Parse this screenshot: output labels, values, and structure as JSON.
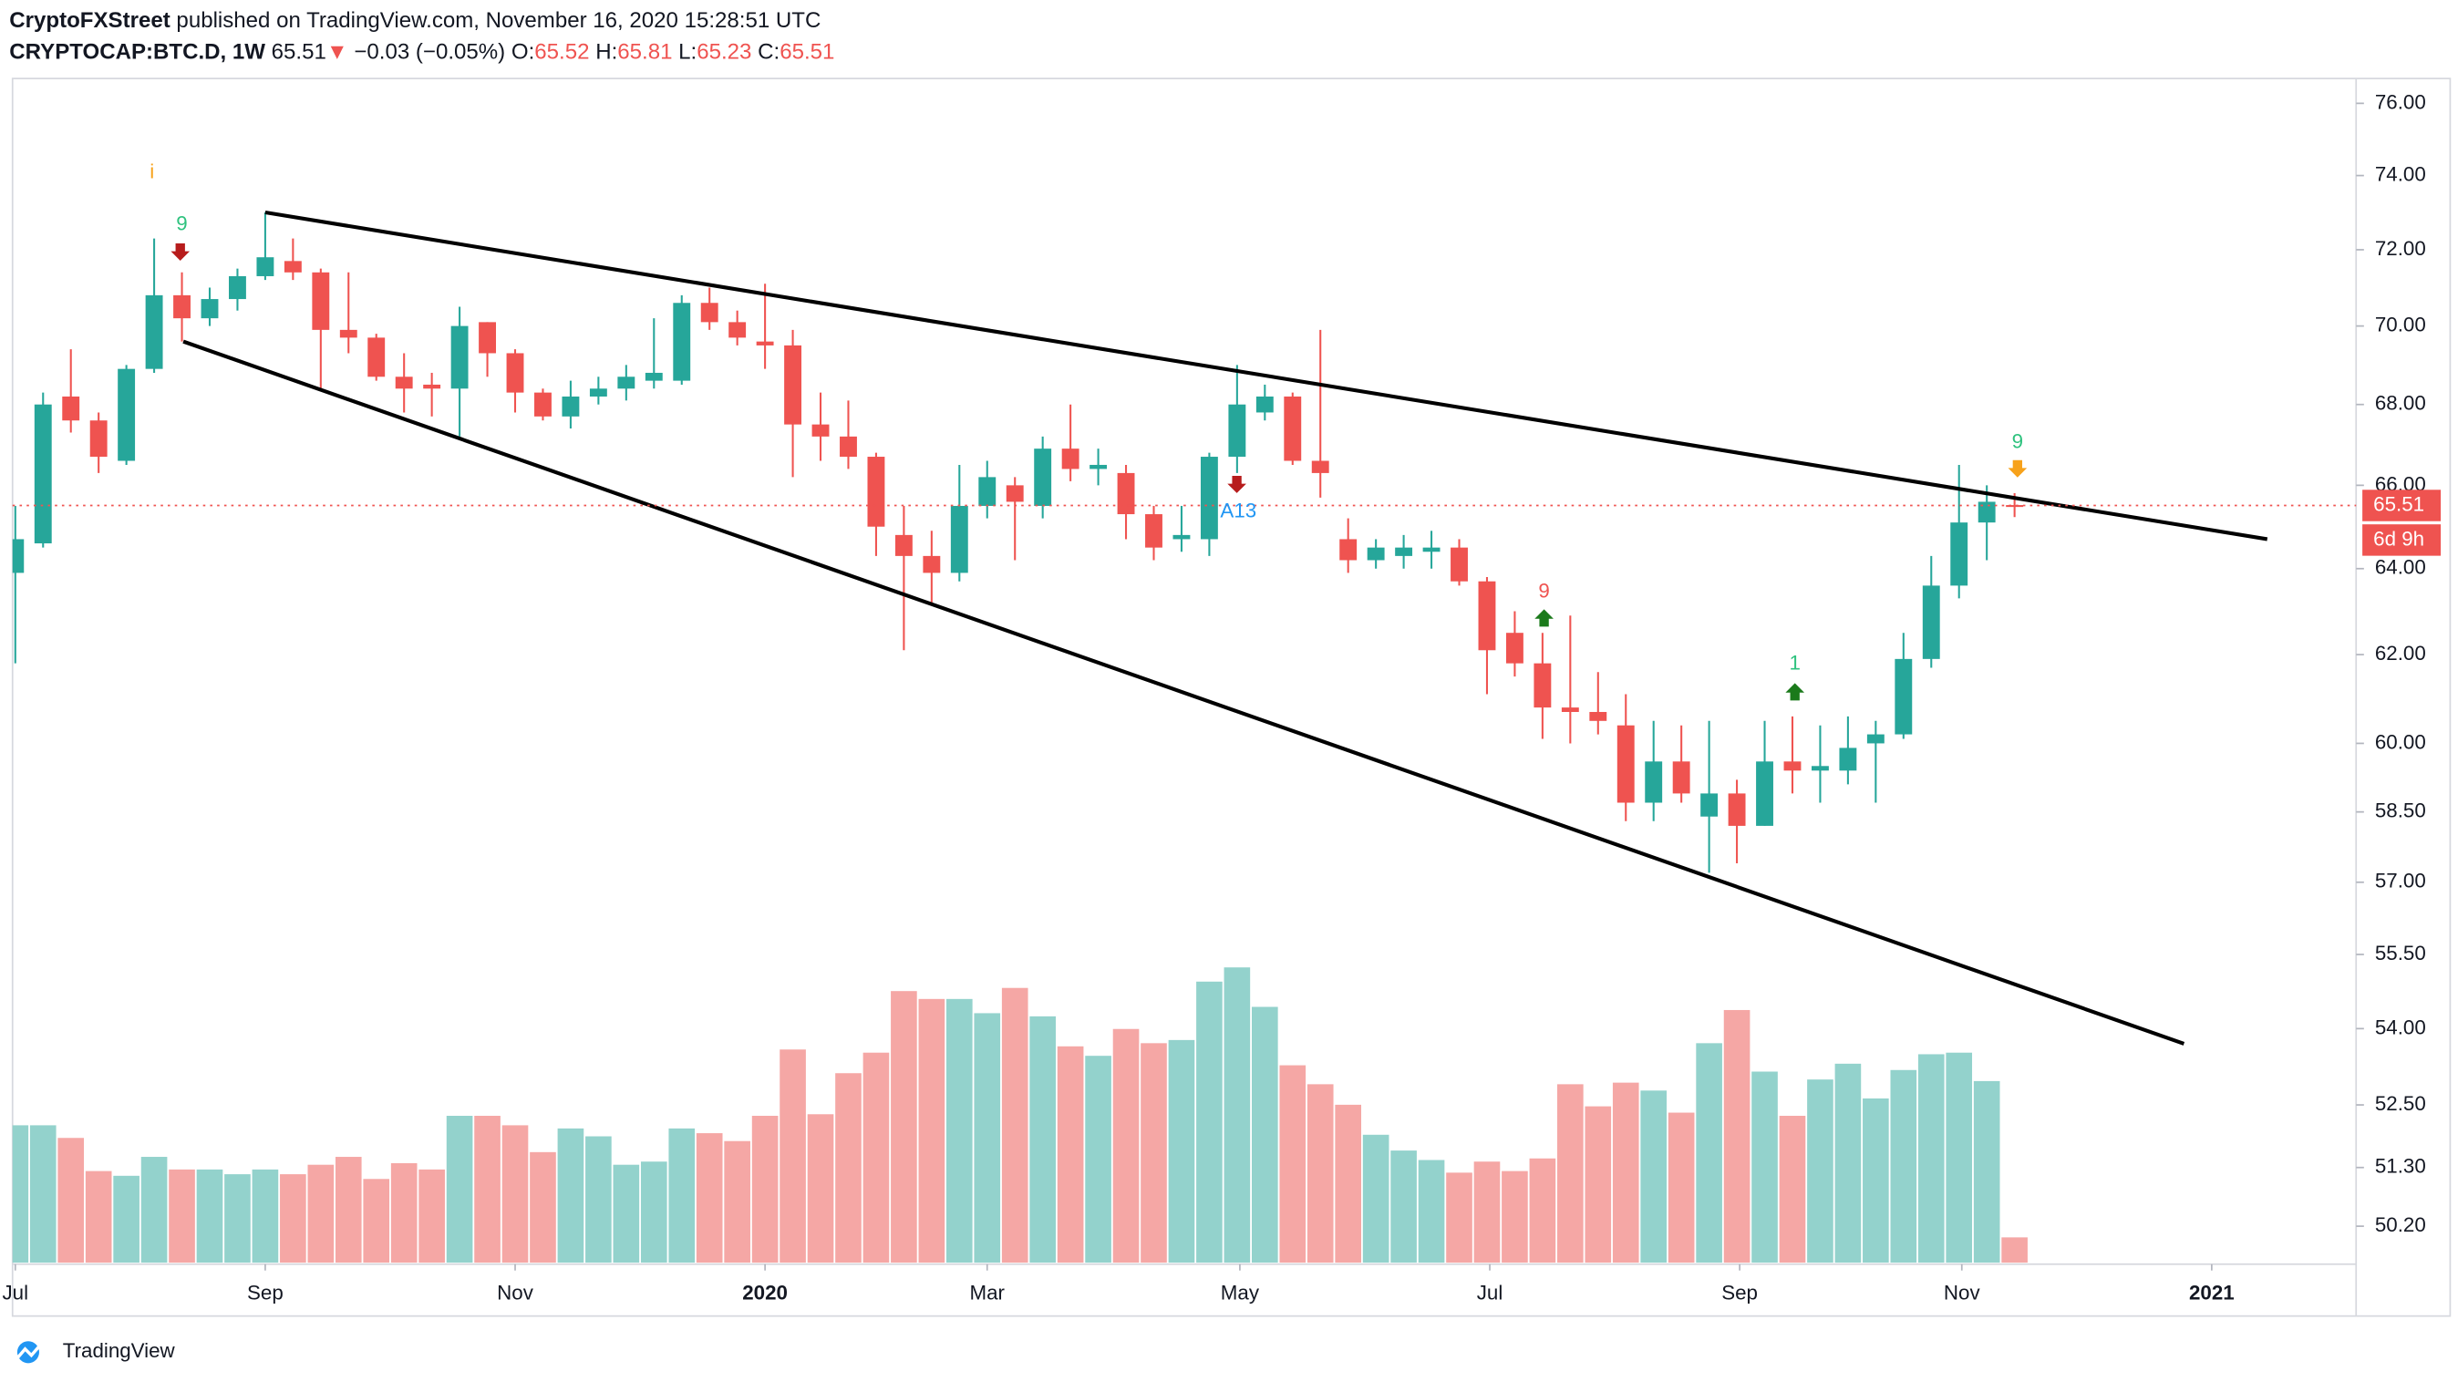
{
  "header": {
    "author": "CryptoFXStreet",
    "published": "published on TradingView.com, November 16, 2020 15:28:51 UTC",
    "symbol": "CRYPTOCAP:BTC.D, 1W",
    "last": 65.51,
    "arrow": "▼",
    "change": "−0.03 (−0.05%)",
    "o_label": "O:",
    "o": 65.52,
    "h_label": "H:",
    "h": 65.81,
    "l_label": "L:",
    "l": 65.23,
    "c_label": "C:",
    "c": 65.51
  },
  "chart_data": {
    "type": "candlestick",
    "log_scale": true,
    "up_color": "#26a69a",
    "down_color": "#ef5350",
    "volume_up_color": "#93d2cc",
    "volume_down_color": "#f5a7a5",
    "open": [
      63.9,
      64.6,
      68.2,
      67.6,
      66.6,
      68.9,
      70.8,
      70.2,
      70.7,
      71.3,
      71.7,
      71.4,
      69.9,
      69.7,
      68.7,
      68.5,
      68.4,
      70.1,
      69.3,
      68.3,
      67.7,
      68.2,
      68.4,
      68.6,
      68.6,
      70.6,
      70.1,
      69.6,
      69.5,
      67.5,
      67.2,
      66.7,
      64.8,
      64.3,
      63.9,
      65.5,
      66.0,
      65.5,
      66.9,
      66.4,
      66.3,
      65.3,
      64.7,
      64.7,
      66.7,
      67.8,
      68.2,
      66.6,
      64.7,
      64.2,
      64.3,
      64.4,
      64.5,
      63.7,
      62.5,
      61.8,
      60.8,
      60.7,
      60.4,
      58.7,
      59.6,
      58.4,
      58.9,
      58.2,
      59.6,
      59.4,
      59.4,
      60.0,
      60.2,
      61.9,
      63.6,
      65.1,
      65.52
    ],
    "high": [
      65.5,
      68.3,
      69.4,
      67.8,
      69.0,
      72.3,
      71.4,
      71.0,
      71.5,
      73.0,
      72.3,
      71.5,
      71.4,
      69.8,
      69.3,
      68.8,
      70.5,
      70.1,
      69.4,
      68.4,
      68.6,
      68.7,
      69.0,
      70.2,
      70.8,
      71.0,
      70.4,
      71.1,
      69.9,
      68.3,
      68.1,
      66.8,
      65.5,
      64.9,
      66.5,
      66.6,
      66.2,
      67.2,
      68.0,
      66.9,
      66.5,
      65.5,
      65.5,
      66.8,
      69.0,
      68.5,
      68.3,
      69.9,
      65.2,
      64.7,
      64.8,
      64.9,
      64.7,
      63.8,
      63.0,
      62.5,
      62.9,
      61.6,
      61.1,
      60.5,
      60.4,
      60.5,
      59.2,
      60.5,
      60.6,
      60.4,
      60.6,
      60.5,
      62.5,
      64.3,
      66.5,
      66.0,
      65.81
    ],
    "low": [
      61.8,
      64.5,
      67.3,
      66.3,
      66.5,
      68.8,
      69.6,
      70.0,
      70.4,
      71.2,
      71.2,
      68.4,
      69.3,
      68.6,
      67.8,
      67.7,
      67.2,
      68.7,
      67.8,
      67.6,
      67.4,
      68.0,
      68.1,
      68.4,
      68.5,
      69.9,
      69.5,
      68.9,
      66.2,
      66.6,
      66.4,
      64.3,
      62.1,
      63.2,
      63.7,
      65.2,
      64.2,
      65.2,
      66.1,
      66.0,
      64.7,
      64.2,
      64.4,
      64.3,
      66.3,
      67.6,
      66.5,
      65.7,
      63.9,
      64.0,
      64.0,
      64.0,
      63.6,
      61.1,
      61.5,
      60.1,
      60.0,
      60.2,
      58.3,
      58.3,
      58.7,
      57.2,
      57.4,
      58.2,
      58.9,
      58.7,
      59.1,
      58.7,
      60.1,
      61.7,
      63.3,
      64.2,
      65.23
    ],
    "close": [
      64.7,
      68.0,
      67.6,
      66.7,
      68.9,
      70.8,
      70.2,
      70.7,
      71.3,
      71.8,
      71.4,
      69.9,
      69.7,
      68.7,
      68.4,
      68.4,
      70.0,
      69.3,
      68.3,
      67.7,
      68.2,
      68.4,
      68.7,
      68.8,
      70.6,
      70.1,
      69.7,
      69.5,
      67.5,
      67.2,
      66.7,
      65.0,
      64.3,
      63.9,
      65.5,
      66.2,
      65.6,
      66.9,
      66.4,
      66.5,
      65.3,
      64.5,
      64.8,
      66.7,
      68.0,
      68.2,
      66.6,
      66.3,
      64.2,
      64.5,
      64.5,
      64.5,
      63.7,
      62.1,
      61.8,
      60.8,
      60.7,
      60.5,
      58.7,
      59.6,
      58.9,
      58.9,
      58.2,
      59.6,
      59.4,
      59.5,
      59.9,
      60.2,
      61.9,
      63.6,
      65.1,
      65.6,
      65.51
    ],
    "volume": [
      87,
      87,
      79,
      58,
      55,
      67,
      59,
      59,
      56,
      59,
      56,
      62,
      67,
      53,
      63,
      59,
      93,
      93,
      87,
      70,
      85,
      80,
      62,
      64,
      85,
      82,
      77,
      93,
      135,
      94,
      120,
      133,
      172,
      167,
      167,
      158,
      174,
      156,
      137,
      131,
      148,
      139,
      141,
      178,
      187,
      162,
      125,
      113,
      100,
      81,
      71,
      65,
      57,
      64,
      58,
      66,
      113,
      99,
      114,
      109,
      95,
      139,
      160,
      121,
      93,
      116,
      126,
      104,
      122,
      132,
      133,
      115,
      16
    ],
    "xlim": [
      -0.1,
      84.3
    ],
    "xticks": [
      {
        "value": 0,
        "label": "Jul"
      },
      {
        "value": 9,
        "label": "Sep"
      },
      {
        "value": 18,
        "label": "Nov"
      },
      {
        "value": 27,
        "label": "2020"
      },
      {
        "value": 35,
        "label": "Mar"
      },
      {
        "value": 44.1,
        "label": "May"
      },
      {
        "value": 53.1,
        "label": "Jul"
      },
      {
        "value": 62.1,
        "label": "Sep"
      },
      {
        "value": 70.1,
        "label": "Nov"
      },
      {
        "value": 79.1,
        "label": "2021"
      }
    ],
    "ylim": [
      49.5,
      76.7
    ],
    "yticks": [
      {
        "value": 76,
        "label": "76.00"
      },
      {
        "value": 74,
        "label": "74.00"
      },
      {
        "value": 72,
        "label": "72.00"
      },
      {
        "value": 70,
        "label": "70.00"
      },
      {
        "value": 68,
        "label": "68.00"
      },
      {
        "value": 66,
        "label": "66.00"
      },
      {
        "value": 64,
        "label": "64.00"
      },
      {
        "value": 62,
        "label": "62.00"
      },
      {
        "value": 60,
        "label": "60.00"
      },
      {
        "value": 58.5,
        "label": "58.50"
      },
      {
        "value": 57,
        "label": "57.00"
      },
      {
        "value": 55.5,
        "label": "55.50"
      },
      {
        "value": 54,
        "label": "54.00"
      },
      {
        "value": 52.5,
        "label": "52.50"
      },
      {
        "value": 51.3,
        "label": "51.30"
      },
      {
        "value": 50.2,
        "label": "50.20"
      }
    ],
    "last_price": 65.51,
    "countdown": "6d 9h",
    "last_price_color": "#ef5350",
    "trend_lines": [
      {
        "points": [
          [
            9,
            73.0
          ],
          [
            81.1,
            64.7
          ]
        ]
      },
      {
        "points": [
          [
            6.05,
            69.6
          ],
          [
            78.1,
            53.7
          ]
        ]
      }
    ],
    "annotations": [
      {
        "text": "i",
        "color": "#f7a21b"
      },
      {
        "text": "9",
        "color": "#2ec27e"
      },
      {
        "text": "9",
        "color": "#ef5350"
      },
      {
        "text": "1",
        "color": "#2ec27e"
      },
      {
        "text": "9",
        "color": "#2ec27e"
      },
      {
        "text": "A13",
        "color": "#2196f3"
      }
    ]
  },
  "footer": {
    "brand": "TradingView"
  }
}
